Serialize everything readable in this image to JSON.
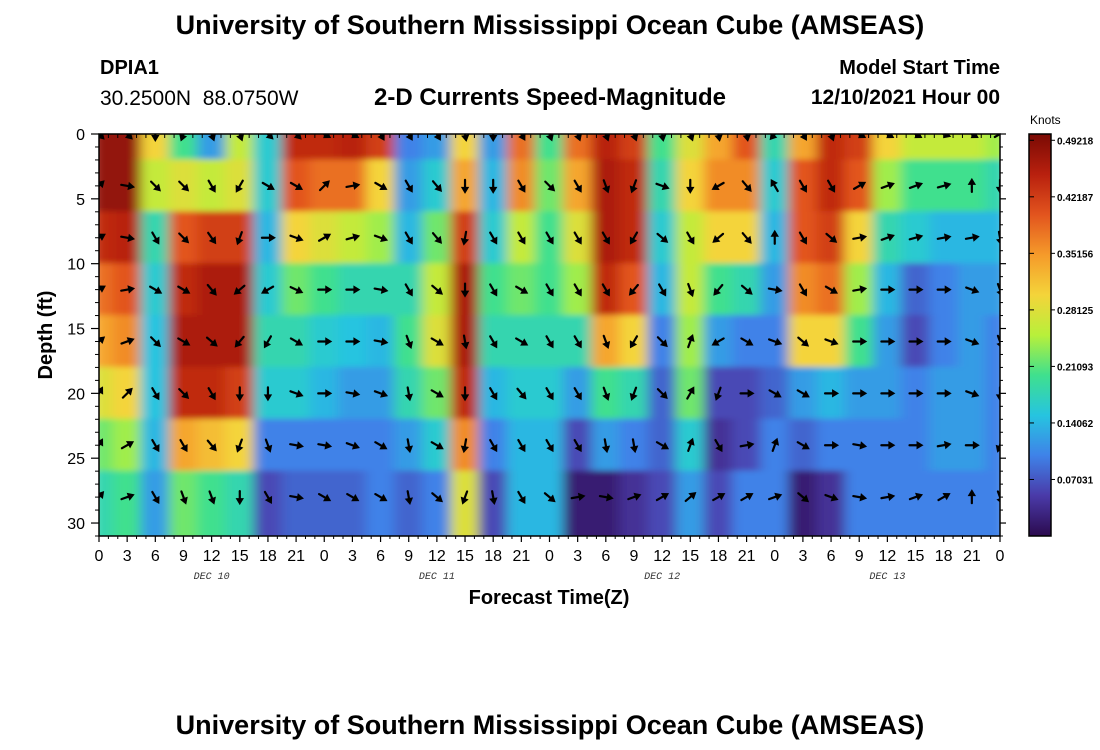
{
  "header": {
    "title": "University of Southern Mississippi Ocean Cube (AMSEAS)",
    "station_id": "DPIA1",
    "station_coords": "30.2500N  88.0750W",
    "chart_title": "2-D Currents Speed-Magnitude",
    "model_start_label": "Model Start Time",
    "model_start_value": "12/10/2021 Hour 00"
  },
  "footer": {
    "title": "University of Southern Mississippi Ocean Cube (AMSEAS)"
  },
  "chart_data": {
    "type": "heatmap",
    "title": "2-D Currents Speed-Magnitude",
    "xlabel": "Forecast Time(Z)",
    "ylabel": "Depth (ft)",
    "x_ticks": [
      "0",
      "3",
      "6",
      "9",
      "12",
      "15",
      "18",
      "21",
      "0",
      "3",
      "6",
      "9",
      "12",
      "15",
      "18",
      "21",
      "0",
      "3",
      "6",
      "9",
      "12",
      "15",
      "18",
      "21",
      "0",
      "3",
      "6",
      "9",
      "12",
      "15",
      "18",
      "21",
      "0"
    ],
    "x_range_hours": [
      0,
      96
    ],
    "day_labels": [
      {
        "label": "DEC 10",
        "hour": 12
      },
      {
        "label": "DEC 11",
        "hour": 36
      },
      {
        "label": "DEC 12",
        "hour": 60
      },
      {
        "label": "DEC 13",
        "hour": 84
      }
    ],
    "y_ticks": [
      "0",
      "5",
      "10",
      "15",
      "20",
      "25",
      "30"
    ],
    "y_range_ft": [
      0,
      31
    ],
    "colorbar": {
      "unit": "Knots",
      "range": [
        0,
        0.5
      ],
      "tick_labels": [
        "0.49218",
        "0.42187",
        "0.35156",
        "0.28125",
        "0.21093",
        "0.14062",
        "0.07031"
      ],
      "tick_values": [
        0.49218,
        0.42187,
        0.35156,
        0.28125,
        0.21093,
        0.14062,
        0.07031
      ]
    },
    "grid": false,
    "colormap": [
      "#2b0a4e",
      "#4a3aa8",
      "#3f82e8",
      "#26c4e0",
      "#3fe08e",
      "#b8f03a",
      "#f4d43a",
      "#f59a2a",
      "#e2541e",
      "#b8200e",
      "#7a0a04"
    ],
    "depths_ft": [
      0,
      4,
      8,
      12,
      16,
      20,
      24,
      28
    ],
    "columns": [
      {
        "hour": 0,
        "speeds": [
          0.48,
          0.48,
          0.44,
          0.38,
          0.34,
          0.28,
          0.22,
          0.18
        ],
        "directions": [
          135,
          45,
          60,
          60,
          50,
          30,
          30,
          40
        ]
      },
      {
        "hour": 3,
        "speeds": [
          0.48,
          0.48,
          0.45,
          0.4,
          0.36,
          0.3,
          0.24,
          0.2
        ],
        "directions": [
          135,
          100,
          100,
          80,
          70,
          45,
          60,
          70
        ]
      },
      {
        "hour": 6,
        "speeds": [
          0.3,
          0.26,
          0.18,
          0.16,
          0.15,
          0.15,
          0.14,
          0.12
        ],
        "directions": [
          180,
          135,
          150,
          120,
          135,
          150,
          150,
          150
        ]
      },
      {
        "hour": 9,
        "speeds": [
          0.2,
          0.28,
          0.4,
          0.44,
          0.46,
          0.44,
          0.34,
          0.22
        ],
        "directions": [
          200,
          135,
          135,
          120,
          120,
          135,
          150,
          160
        ]
      },
      {
        "hour": 12,
        "speeds": [
          0.12,
          0.26,
          0.42,
          0.46,
          0.46,
          0.44,
          0.32,
          0.2
        ],
        "directions": [
          160,
          150,
          145,
          140,
          130,
          150,
          140,
          160
        ]
      },
      {
        "hour": 15,
        "speeds": [
          0.26,
          0.28,
          0.42,
          0.46,
          0.46,
          0.42,
          0.3,
          0.18
        ],
        "directions": [
          160,
          210,
          200,
          230,
          220,
          180,
          200,
          180
        ]
      },
      {
        "hour": 18,
        "speeds": [
          0.16,
          0.16,
          0.14,
          0.16,
          0.18,
          0.16,
          0.1,
          0.06
        ],
        "directions": [
          135,
          120,
          90,
          240,
          210,
          180,
          160,
          150
        ]
      },
      {
        "hour": 21,
        "speeds": [
          0.44,
          0.4,
          0.3,
          0.22,
          0.18,
          0.16,
          0.1,
          0.08
        ],
        "directions": [
          135,
          120,
          110,
          115,
          120,
          110,
          100,
          100
        ]
      },
      {
        "hour": 24,
        "speeds": [
          0.44,
          0.38,
          0.28,
          0.2,
          0.16,
          0.14,
          0.1,
          0.08
        ],
        "directions": [
          120,
          45,
          60,
          90,
          90,
          90,
          100,
          120
        ]
      },
      {
        "hour": 27,
        "speeds": [
          0.45,
          0.38,
          0.26,
          0.18,
          0.15,
          0.12,
          0.1,
          0.08
        ],
        "directions": [
          120,
          80,
          75,
          90,
          90,
          100,
          110,
          120
        ]
      },
      {
        "hour": 30,
        "speeds": [
          0.42,
          0.3,
          0.24,
          0.18,
          0.14,
          0.12,
          0.1,
          0.1
        ],
        "directions": [
          150,
          120,
          110,
          100,
          100,
          110,
          120,
          120
        ]
      },
      {
        "hour": 33,
        "speeds": [
          0.1,
          0.12,
          0.14,
          0.18,
          0.2,
          0.18,
          0.12,
          0.08
        ],
        "directions": [
          150,
          150,
          150,
          150,
          160,
          170,
          170,
          170
        ]
      },
      {
        "hour": 36,
        "speeds": [
          0.12,
          0.16,
          0.22,
          0.26,
          0.28,
          0.22,
          0.16,
          0.1
        ],
        "directions": [
          150,
          140,
          140,
          130,
          120,
          120,
          120,
          130
        ]
      },
      {
        "hour": 39,
        "speeds": [
          0.3,
          0.34,
          0.42,
          0.46,
          0.46,
          0.44,
          0.36,
          0.28
        ],
        "directions": [
          170,
          180,
          190,
          180,
          170,
          180,
          190,
          200
        ]
      },
      {
        "hour": 42,
        "speeds": [
          0.12,
          0.14,
          0.16,
          0.2,
          0.18,
          0.14,
          0.1,
          0.06
        ],
        "directions": [
          180,
          180,
          150,
          150,
          150,
          150,
          150,
          170
        ]
      },
      {
        "hour": 45,
        "speeds": [
          0.38,
          0.36,
          0.26,
          0.22,
          0.18,
          0.16,
          0.14,
          0.14
        ],
        "directions": [
          150,
          150,
          150,
          120,
          120,
          140,
          150,
          150
        ]
      },
      {
        "hour": 48,
        "speeds": [
          0.2,
          0.22,
          0.2,
          0.2,
          0.18,
          0.16,
          0.14,
          0.14
        ],
        "directions": [
          160,
          135,
          150,
          150,
          150,
          150,
          150,
          130
        ]
      },
      {
        "hour": 51,
        "speeds": [
          0.38,
          0.34,
          0.28,
          0.24,
          0.18,
          0.12,
          0.06,
          0.02
        ],
        "directions": [
          160,
          150,
          150,
          150,
          150,
          150,
          150,
          80
        ]
      },
      {
        "hour": 54,
        "speeds": [
          0.45,
          0.46,
          0.46,
          0.44,
          0.34,
          0.2,
          0.12,
          0.02
        ],
        "directions": [
          160,
          160,
          150,
          150,
          160,
          160,
          170,
          100
        ]
      },
      {
        "hour": 57,
        "speeds": [
          0.42,
          0.44,
          0.44,
          0.4,
          0.3,
          0.18,
          0.1,
          0.04
        ],
        "directions": [
          160,
          200,
          210,
          220,
          210,
          200,
          170,
          70
        ]
      },
      {
        "hour": 60,
        "speeds": [
          0.2,
          0.18,
          0.16,
          0.14,
          0.1,
          0.08,
          0.08,
          0.06
        ],
        "directions": [
          170,
          110,
          130,
          150,
          135,
          135,
          120,
          60
        ]
      },
      {
        "hour": 63,
        "speeds": [
          0.28,
          0.3,
          0.26,
          0.26,
          0.24,
          0.22,
          0.16,
          0.12
        ],
        "directions": [
          160,
          180,
          150,
          160,
          20,
          30,
          20,
          50
        ]
      },
      {
        "hour": 66,
        "speeds": [
          0.34,
          0.36,
          0.3,
          0.2,
          0.12,
          0.06,
          0.04,
          0.06
        ],
        "directions": [
          170,
          240,
          230,
          220,
          240,
          200,
          150,
          60
        ]
      },
      {
        "hour": 69,
        "speeds": [
          0.4,
          0.36,
          0.3,
          0.18,
          0.1,
          0.06,
          0.06,
          0.1
        ],
        "directions": [
          170,
          140,
          140,
          130,
          120,
          90,
          80,
          60
        ]
      },
      {
        "hour": 72,
        "speeds": [
          0.18,
          0.16,
          0.14,
          0.12,
          0.1,
          0.08,
          0.1,
          0.1
        ],
        "directions": [
          220,
          330,
          0,
          100,
          110,
          120,
          20,
          70
        ]
      },
      {
        "hour": 75,
        "speeds": [
          0.34,
          0.4,
          0.4,
          0.36,
          0.3,
          0.12,
          0.08,
          0.02
        ],
        "directions": [
          150,
          150,
          150,
          150,
          130,
          120,
          120,
          130
        ]
      },
      {
        "hour": 78,
        "speeds": [
          0.44,
          0.44,
          0.42,
          0.38,
          0.3,
          0.14,
          0.1,
          0.04
        ],
        "directions": [
          160,
          150,
          130,
          120,
          110,
          90,
          90,
          110
        ]
      },
      {
        "hour": 81,
        "speeds": [
          0.42,
          0.4,
          0.3,
          0.24,
          0.2,
          0.12,
          0.1,
          0.1
        ],
        "directions": [
          120,
          60,
          80,
          80,
          90,
          90,
          100,
          100
        ]
      },
      {
        "hour": 84,
        "speeds": [
          0.3,
          0.24,
          0.18,
          0.14,
          0.12,
          0.12,
          0.1,
          0.1
        ],
        "directions": [
          120,
          70,
          70,
          90,
          90,
          90,
          90,
          80
        ]
      },
      {
        "hour": 87,
        "speeds": [
          0.26,
          0.2,
          0.16,
          0.08,
          0.06,
          0.1,
          0.1,
          0.1
        ],
        "directions": [
          120,
          70,
          75,
          90,
          90,
          90,
          90,
          70
        ]
      },
      {
        "hour": 90,
        "speeds": [
          0.26,
          0.2,
          0.14,
          0.1,
          0.1,
          0.12,
          0.12,
          0.1
        ],
        "directions": [
          110,
          75,
          80,
          90,
          90,
          90,
          80,
          60
        ]
      },
      {
        "hour": 93,
        "speeds": [
          0.26,
          0.2,
          0.14,
          0.12,
          0.12,
          0.12,
          0.12,
          0.1
        ],
        "directions": [
          120,
          0,
          80,
          110,
          110,
          110,
          90,
          0
        ]
      },
      {
        "hour": 96,
        "speeds": [
          0.24,
          0.18,
          0.14,
          0.12,
          0.1,
          0.1,
          0.1,
          0.1
        ],
        "directions": [
          60,
          180,
          170,
          160,
          160,
          180,
          200,
          160
        ]
      }
    ]
  }
}
